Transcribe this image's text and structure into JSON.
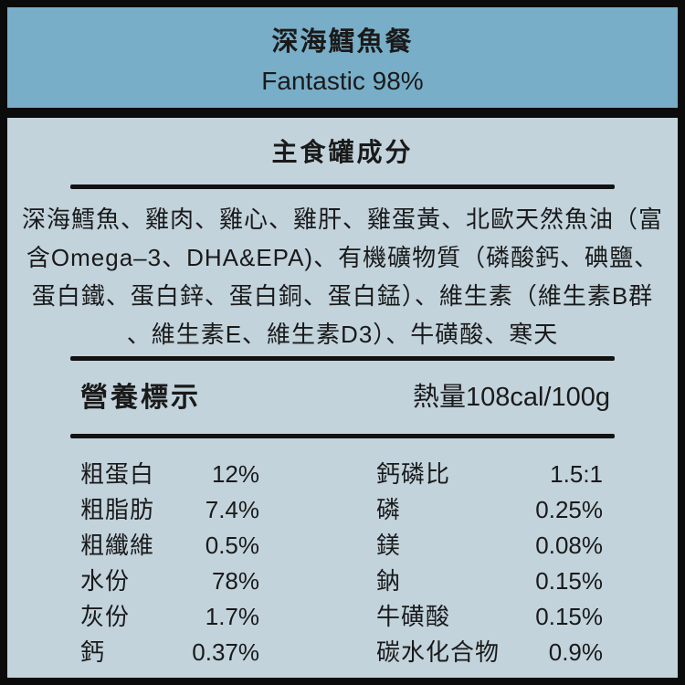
{
  "colors": {
    "frame": "#0b0b0b",
    "header_bg": "#79aec9",
    "panel_bg": "#c2d3dc",
    "text": "#1a1a1a"
  },
  "header": {
    "title": "深海鱈魚餐",
    "subtitle": "Fantastic 98%"
  },
  "ingredients": {
    "section_title": "主食罐成分",
    "lines": [
      "深海鱈魚、雞肉、雞心、雞肝、雞蛋黃、北歐天然魚油（富",
      "含Omega–3、DHA&EPA)、有機礦物質（磷酸鈣、碘鹽、",
      "蛋白鐵、蛋白鋅、蛋白銅、蛋白錳）、維生素（維生素B群",
      "、維生素E、維生素D3）、牛磺酸、寒天"
    ]
  },
  "nutrition": {
    "section_title": "營養標示",
    "calories": "熱量108cal/100g",
    "left": [
      {
        "label": "粗蛋白",
        "value": "12%"
      },
      {
        "label": "粗脂肪",
        "value": "7.4%"
      },
      {
        "label": "粗纖維",
        "value": "0.5%"
      },
      {
        "label": "水份",
        "value": "78%"
      },
      {
        "label": "灰份",
        "value": "1.7%"
      },
      {
        "label": "鈣",
        "value": "0.37%"
      }
    ],
    "right": [
      {
        "label": "鈣磷比",
        "value": "1.5:1"
      },
      {
        "label": "磷",
        "value": "0.25%"
      },
      {
        "label": "鎂",
        "value": "0.08%"
      },
      {
        "label": "鈉",
        "value": "0.15%"
      },
      {
        "label": "牛磺酸",
        "value": "0.15%"
      },
      {
        "label": "碳水化合物",
        "value": "0.9%"
      }
    ]
  }
}
